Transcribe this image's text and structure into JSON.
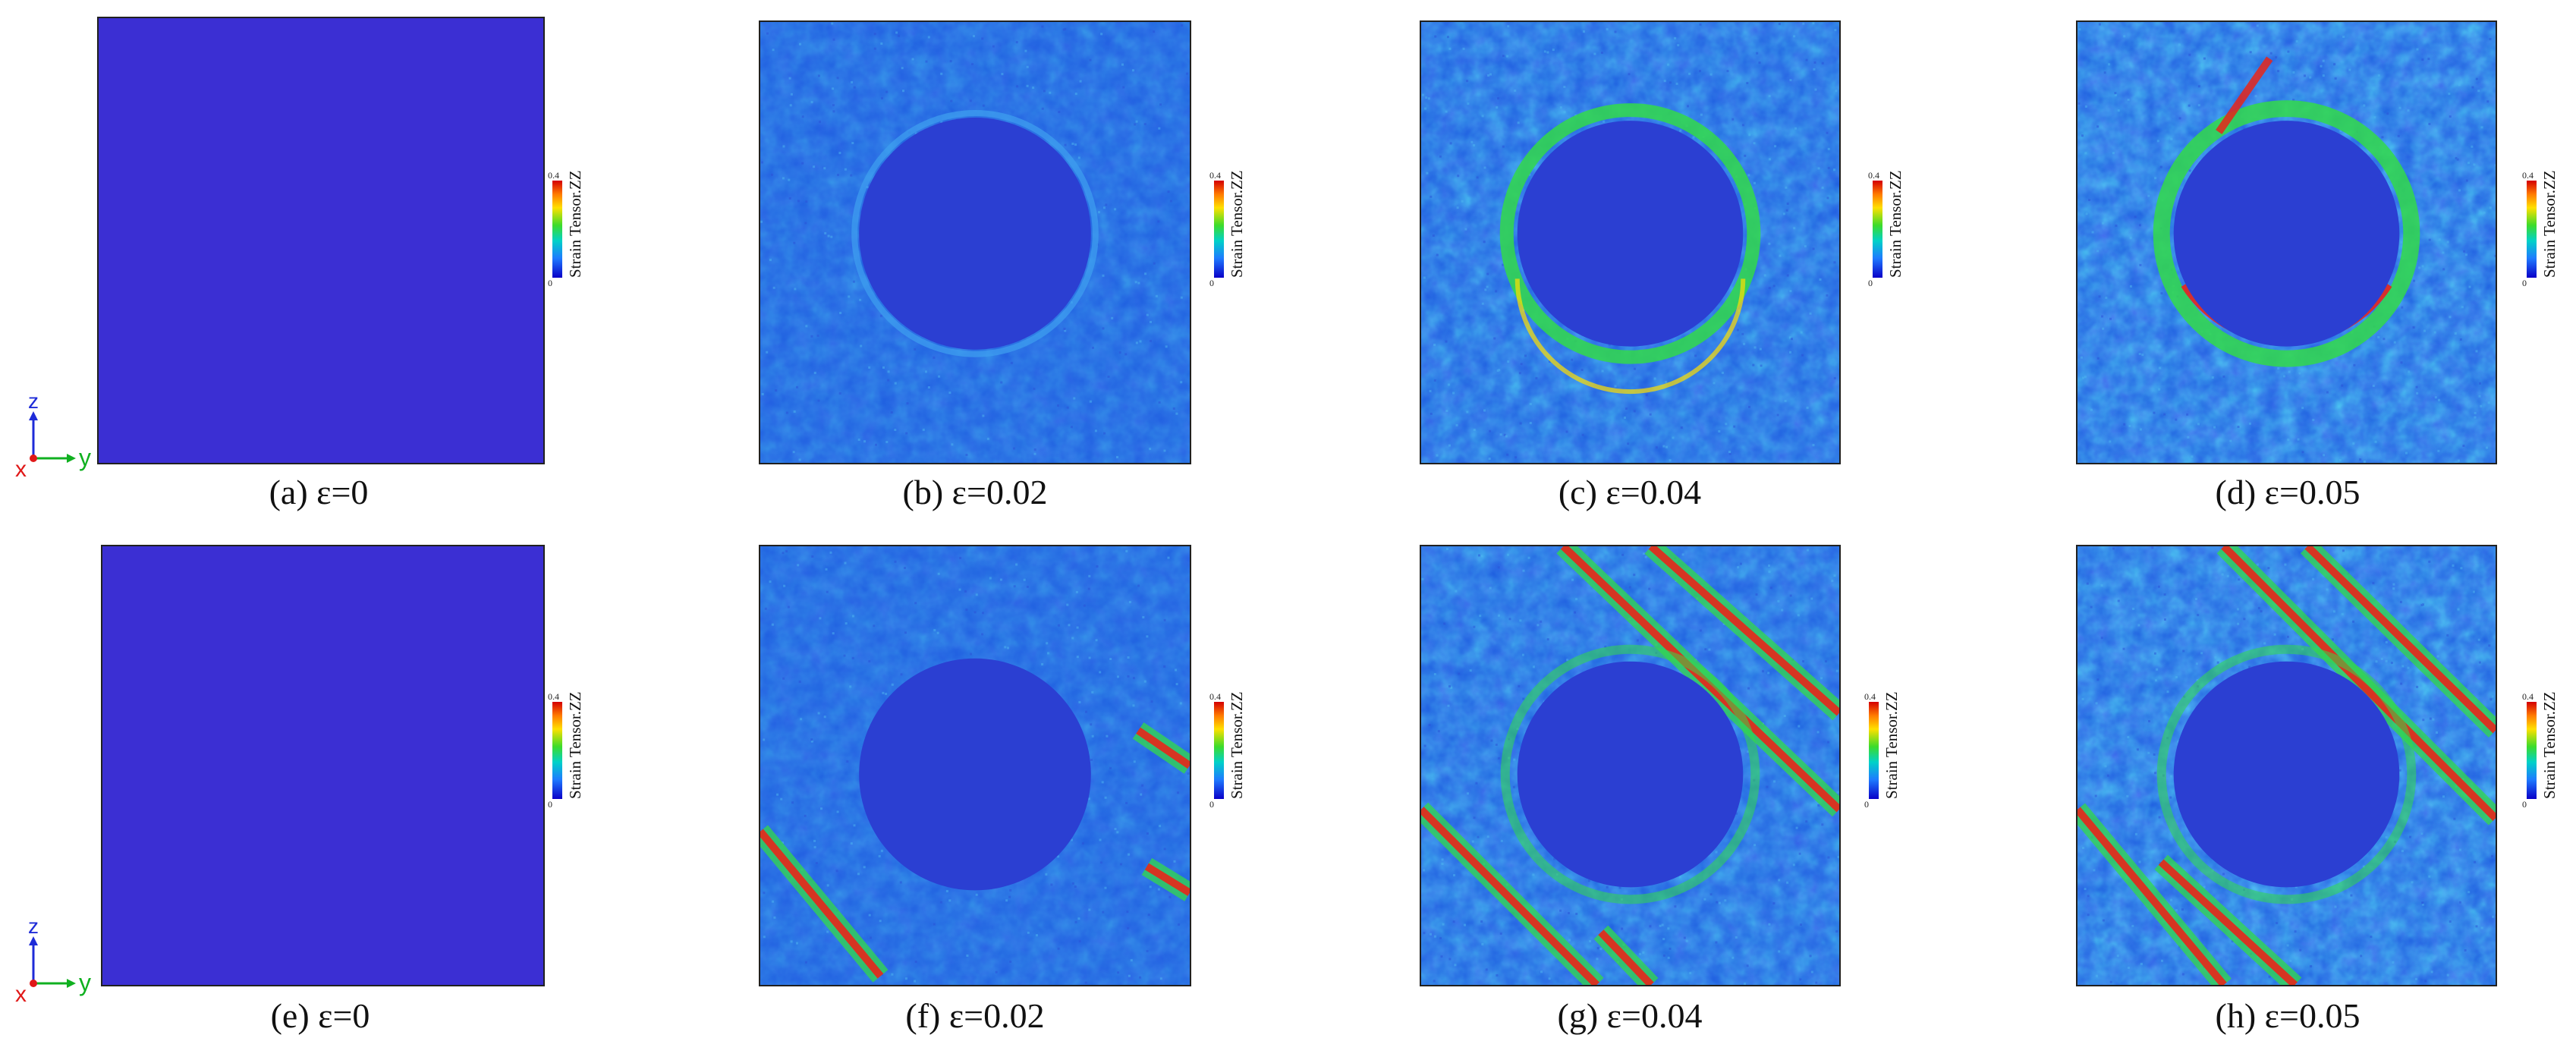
{
  "panels": [
    {
      "caption": "(a) ε=0",
      "state": "uniform"
    },
    {
      "caption": "(b) ε=0.02",
      "state": "hole-low"
    },
    {
      "caption": "(c) ε=0.04",
      "state": "hole-mid"
    },
    {
      "caption": "(d) ε=0.05",
      "state": "hole-high"
    },
    {
      "caption": "(e) ε=0",
      "state": "uniform"
    },
    {
      "caption": "(f) ε=0.02",
      "state": "bands-low"
    },
    {
      "caption": "(g) ε=0.04",
      "state": "bands-mid"
    },
    {
      "caption": "(h) ε=0.05",
      "state": "bands-high"
    }
  ],
  "colorbar": {
    "label": "Strain Tensor.ZZ",
    "max": "0.4",
    "min": "0",
    "colors": [
      "#d40000",
      "#ff7a00",
      "#ffe000",
      "#3ddc2a",
      "#00d2c8",
      "#1e7bff",
      "#0a00c8"
    ]
  },
  "axes_triad": {
    "z": "z",
    "y": "y",
    "x": "x"
  },
  "colors": {
    "uniform_field": "#3b2fd3",
    "background_field": "#1f5fe0",
    "hole_field": "#2b3fd2",
    "band_high": "#e8261a",
    "band_mid": "#33d94a"
  }
}
